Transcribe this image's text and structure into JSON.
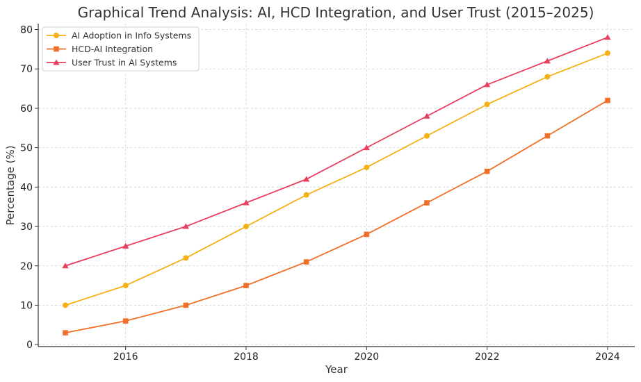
{
  "chart_data": {
    "type": "line",
    "title": "Graphical Trend Analysis: AI, HCD Integration, and User Trust (2015–2025)",
    "xlabel": "Year",
    "ylabel": "Percentage (%)",
    "x": [
      2015,
      2016,
      2017,
      2018,
      2019,
      2020,
      2021,
      2022,
      2023,
      2024
    ],
    "xlim": [
      2014.55,
      2024.45
    ],
    "ylim": [
      -0.5,
      81.5
    ],
    "xticks": [
      2016,
      2018,
      2020,
      2022,
      2024
    ],
    "yticks": [
      0,
      10,
      20,
      30,
      40,
      50,
      60,
      70,
      80
    ],
    "grid": true,
    "legend_position": "top-left",
    "series": [
      {
        "name": "AI Adoption in Info Systems",
        "color": "#f5b013",
        "marker": "circle",
        "values": [
          10,
          15,
          22,
          30,
          38,
          45,
          53,
          61,
          68,
          74
        ]
      },
      {
        "name": "HCD-AI Integration",
        "color": "#f07028",
        "marker": "square",
        "values": [
          3,
          6,
          10,
          15,
          21,
          28,
          36,
          44,
          53,
          62
        ]
      },
      {
        "name": "User Trust in AI Systems",
        "color": "#ea3d5d",
        "marker": "triangle",
        "values": [
          20,
          25,
          30,
          36,
          42,
          50,
          58,
          66,
          72,
          78
        ]
      }
    ]
  }
}
